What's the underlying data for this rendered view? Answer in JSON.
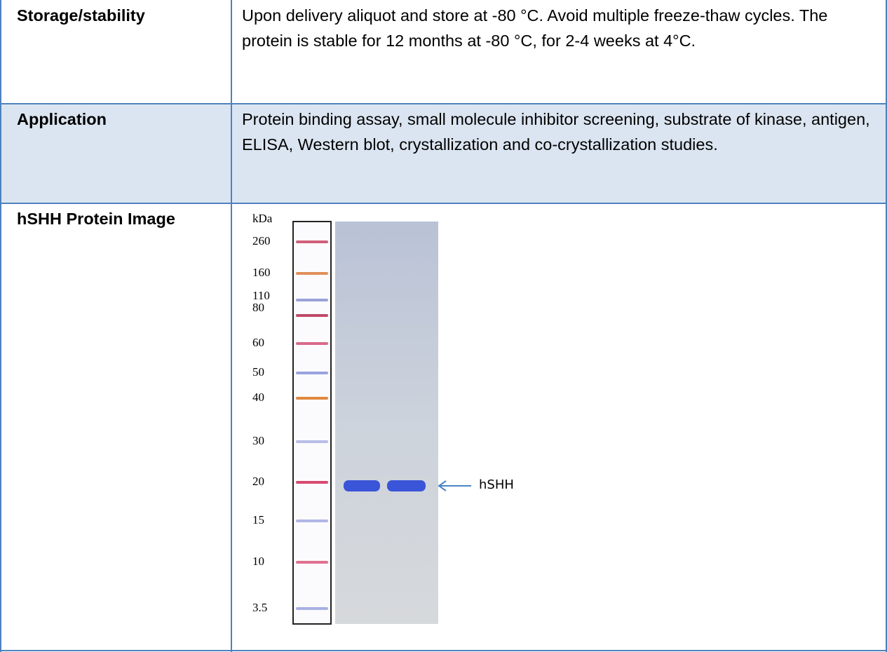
{
  "table": {
    "rows": [
      {
        "label": "Storage/stability",
        "text": "Upon delivery aliquot and store at -80 °C. Avoid multiple freeze-thaw cycles. The protein is stable for 12 months at -80 °C, for 2-4 weeks at 4°C."
      },
      {
        "label": "Application",
        "text": "Protein binding assay, small molecule inhibitor screening, substrate of kinase, antigen, ELISA, Western blot, crystallization and co-crystallization studies."
      },
      {
        "label": "hSHH Protein Image"
      }
    ]
  },
  "image": {
    "unit": "kDa",
    "markers": [
      "260",
      "160",
      "110",
      "80",
      "60",
      "50",
      "40",
      "30",
      "20",
      "15",
      "10",
      "3.5"
    ],
    "band_label": "hSHH"
  }
}
